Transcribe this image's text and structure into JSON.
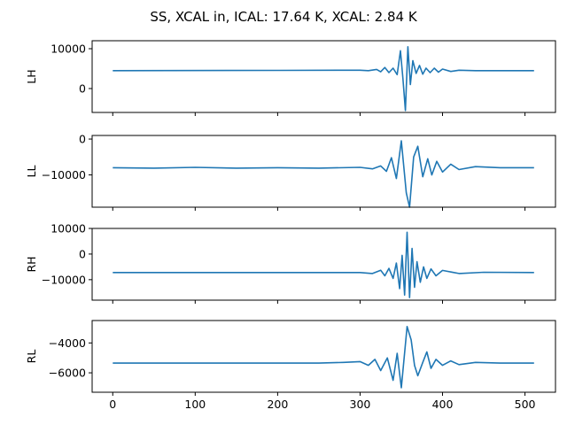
{
  "chart_data": {
    "type": "line",
    "title": "SS, XCAL in, ICAL: 17.64 K, XCAL: 2.84 K",
    "shared_x": {
      "xlim": [
        -25,
        537
      ],
      "ticks": [
        0,
        100,
        200,
        300,
        400,
        500
      ],
      "tick_labels": [
        "0",
        "100",
        "200",
        "300",
        "400",
        "500"
      ]
    },
    "series_color": "#1f77b4",
    "panels": [
      {
        "ylabel": "LH",
        "ylim": [
          -6000,
          12000
        ],
        "yticks": [
          0,
          10000
        ],
        "ytick_labels": [
          "0",
          "10000"
        ],
        "x": [
          0,
          200,
          300,
          310,
          320,
          325,
          330,
          335,
          340,
          345,
          349,
          352,
          355,
          358,
          361,
          364,
          368,
          372,
          376,
          380,
          385,
          390,
          395,
          400,
          410,
          420,
          440,
          511
        ],
        "y": [
          4500,
          4550,
          4600,
          4500,
          4800,
          4200,
          5300,
          4000,
          5100,
          3500,
          9500,
          2500,
          -5500,
          10500,
          1000,
          7000,
          3800,
          5800,
          3600,
          5100,
          4000,
          5100,
          4100,
          4900,
          4300,
          4600,
          4500,
          4500
        ]
      },
      {
        "ylabel": "LL",
        "ylim": [
          -19000,
          1000
        ],
        "yticks": [
          -10000,
          0
        ],
        "ytick_labels": [
          "−10000",
          "0"
        ],
        "x": [
          0,
          50,
          100,
          150,
          200,
          250,
          300,
          315,
          325,
          332,
          338,
          344,
          350,
          356,
          360,
          365,
          370,
          376,
          382,
          387,
          393,
          400,
          410,
          420,
          440,
          470,
          511
        ],
        "y": [
          -8000,
          -8100,
          -7900,
          -8100,
          -8000,
          -8100,
          -7900,
          -8300,
          -7500,
          -9000,
          -5200,
          -11000,
          -500,
          -15000,
          -19000,
          -5000,
          -2000,
          -10500,
          -5500,
          -10000,
          -6200,
          -9200,
          -7000,
          -8500,
          -7700,
          -8000,
          -8000
        ]
      },
      {
        "ylabel": "RH",
        "ylim": [
          -18000,
          10000
        ],
        "yticks": [
          -10000,
          0,
          10000
        ],
        "ytick_labels": [
          "−10000",
          "0",
          "10000"
        ],
        "x": [
          0,
          200,
          300,
          315,
          325,
          330,
          335,
          340,
          344,
          348,
          351,
          354,
          357,
          360,
          363,
          366,
          369,
          373,
          377,
          381,
          386,
          392,
          400,
          420,
          450,
          511
        ],
        "y": [
          -7200,
          -7200,
          -7200,
          -7600,
          -6300,
          -8500,
          -5600,
          -9500,
          -3500,
          -13500,
          -500,
          -16000,
          8500,
          -17000,
          2200,
          -13000,
          -3000,
          -11000,
          -5000,
          -9500,
          -5800,
          -8500,
          -6400,
          -7600,
          -7100,
          -7200
        ]
      },
      {
        "ylabel": "RL",
        "ylim": [
          -7300,
          -2500
        ],
        "yticks": [
          -6000,
          -4000
        ],
        "ytick_labels": [
          "−6000",
          "−4000"
        ],
        "x": [
          0,
          100,
          200,
          250,
          280,
          300,
          310,
          318,
          325,
          333,
          340,
          345,
          350,
          357,
          362,
          366,
          370,
          376,
          381,
          386,
          392,
          400,
          410,
          420,
          440,
          470,
          511
        ],
        "y": [
          -5350,
          -5350,
          -5350,
          -5350,
          -5300,
          -5250,
          -5500,
          -5100,
          -5850,
          -5000,
          -6500,
          -4700,
          -7000,
          -2900,
          -3800,
          -5500,
          -6200,
          -5300,
          -4600,
          -5700,
          -5100,
          -5500,
          -5200,
          -5450,
          -5300,
          -5350,
          -5350
        ]
      }
    ]
  }
}
